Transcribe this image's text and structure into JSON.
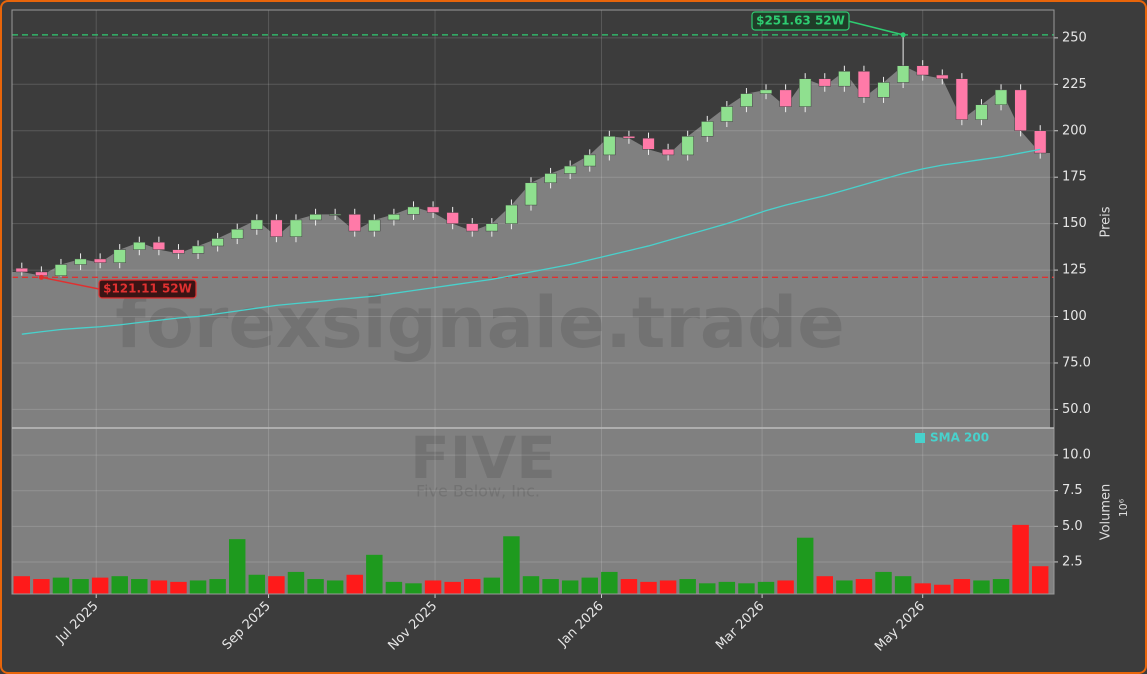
{
  "chart_data": {
    "type": "candlestick",
    "watermark": "forexsignale.trade",
    "ticker": "FIVE",
    "company": "Five Below, Inc.",
    "ylabel": "Preis",
    "y2label": "Volumen",
    "y2_offset": "10⁶",
    "ylim": [
      40,
      265
    ],
    "yticks": [
      {
        "value": 50,
        "label": "50.0"
      },
      {
        "value": 75,
        "label": "75.0"
      },
      100,
      125,
      150,
      175,
      200,
      225,
      250
    ],
    "y2lim": [
      0.25,
      11.9
    ],
    "y2ticks": [
      2.5,
      {
        "value": 5,
        "label": "5.0"
      },
      7.5,
      {
        "value": 10,
        "label": "10.0"
      }
    ],
    "xticks": [
      {
        "value": 3.8,
        "label": "Jul 2025"
      },
      {
        "value": 12.6,
        "label": "Sep 2025"
      },
      {
        "value": 21.1,
        "label": "Nov 2025"
      },
      {
        "value": 29.6,
        "label": "Jan 2026"
      },
      {
        "value": 37.8,
        "label": "Mar 2026"
      },
      {
        "value": 46,
        "label": "May 2026"
      }
    ],
    "grid": true,
    "up_color": "#8fe08f",
    "down_color": "#ff7aa8",
    "volume_up_color": "#1e9a1e",
    "volume_down_color": "#ff1a1a",
    "area_color": "#808080",
    "open": [
      126,
      124,
      122,
      128,
      131,
      129,
      136,
      140,
      136,
      134,
      138,
      142,
      147,
      152,
      143,
      152,
      155,
      155,
      146,
      152,
      155,
      159,
      156,
      150,
      146,
      150,
      160,
      172,
      177,
      181,
      187,
      197,
      196,
      190,
      187,
      197,
      205,
      213,
      220,
      222,
      213,
      228,
      224,
      232,
      218,
      226,
      235,
      230,
      228,
      206,
      214,
      222,
      200
    ],
    "high": [
      129,
      127,
      131,
      134,
      134,
      139,
      143,
      143,
      139,
      141,
      145,
      150,
      155,
      155,
      155,
      158,
      158,
      158,
      155,
      158,
      162,
      162,
      159,
      153,
      153,
      163,
      175,
      180,
      184,
      190,
      200,
      200,
      199,
      193,
      200,
      208,
      216,
      223,
      225,
      225,
      231,
      231,
      235,
      235,
      229,
      251.63,
      238,
      233,
      231,
      217,
      225,
      225,
      203
    ],
    "low": [
      122,
      121.11,
      121.5,
      125,
      126,
      126,
      133,
      133,
      131,
      131,
      135,
      139,
      144,
      140,
      140,
      149,
      152,
      143,
      143,
      149,
      152,
      153,
      147,
      143,
      143,
      147,
      157,
      169,
      174,
      178,
      184,
      193,
      187,
      184,
      184,
      194,
      202,
      210,
      217,
      210,
      210,
      221,
      221,
      215,
      215,
      223,
      227,
      225,
      203,
      203,
      211,
      197,
      185
    ],
    "close": [
      124,
      122,
      128,
      131,
      129,
      136,
      140,
      136,
      134,
      138,
      142,
      147,
      152,
      143,
      152,
      155,
      155,
      146,
      152,
      155,
      159,
      156,
      150,
      146,
      150,
      160,
      172,
      177,
      181,
      187,
      197,
      196,
      190,
      187,
      197,
      205,
      213,
      220,
      222,
      213,
      228,
      224,
      232,
      218,
      226,
      235,
      230,
      228,
      206,
      214,
      222,
      200,
      188
    ],
    "volume": [
      1.5,
      1.3,
      1.4,
      1.3,
      1.4,
      1.5,
      1.3,
      1.2,
      1.1,
      1.2,
      1.3,
      4.1,
      1.6,
      1.5,
      1.8,
      1.3,
      1.2,
      1.6,
      3.0,
      1.1,
      1.0,
      1.2,
      1.1,
      1.3,
      1.4,
      4.3,
      1.5,
      1.3,
      1.2,
      1.4,
      1.8,
      1.3,
      1.1,
      1.2,
      1.3,
      1.0,
      1.1,
      1.0,
      1.1,
      1.2,
      4.2,
      1.5,
      1.2,
      1.3,
      1.8,
      1.5,
      1.0,
      0.9,
      1.3,
      1.2,
      1.3,
      5.1,
      2.2
    ],
    "sma": {
      "name": "SMA 200",
      "color": "#48d1cc",
      "values": [
        90.5,
        91.8,
        93,
        93.8,
        94.5,
        95.5,
        96.8,
        98,
        99.2,
        100,
        101.5,
        103,
        104.5,
        106,
        107,
        108,
        109,
        110,
        111,
        112.5,
        114,
        115.5,
        117,
        118.5,
        120,
        122,
        124,
        126,
        128,
        130.5,
        133,
        135.5,
        138,
        141,
        144,
        147,
        150,
        153.5,
        157,
        160,
        162.5,
        165,
        168,
        171,
        174,
        177,
        179.5,
        181.5,
        183,
        184.5,
        186,
        188,
        190
      ]
    },
    "high_line": {
      "value": 251.63,
      "label": "$251.63 52W",
      "color": "#2ecc71"
    },
    "low_line": {
      "value": 121.11,
      "label": "$121.11 52W",
      "color": "#e03030"
    }
  }
}
